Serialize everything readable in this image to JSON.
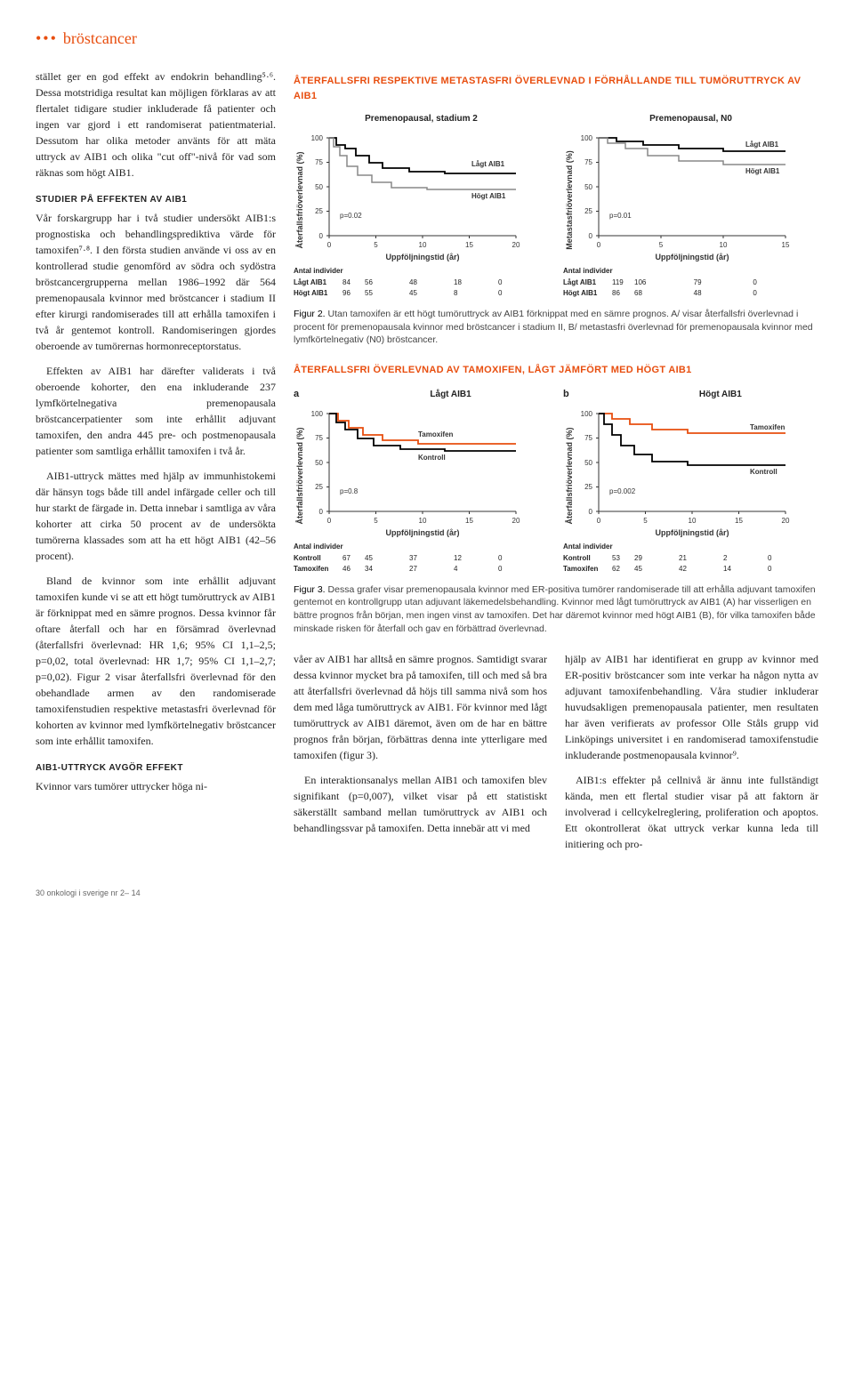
{
  "section_label": "bröstcancer",
  "left": {
    "p1": "stället ger en god effekt av endokrin behandling⁵·⁶. Dessa motstridiga resultat kan möjligen förklaras av att flertalet tidigare studier inkluderade få patienter och ingen var gjord i ett randomiserat patientmaterial. Dessutom har olika metoder använts för att mäta uttryck av AIB1 och olika \"cut off\"-nivå för vad som räknas som högt AIB1.",
    "h1": "STUDIER PÅ EFFEKTEN AV AIB1",
    "p2": "Vår forskargrupp har i två studier undersökt AIB1:s prognostiska och behandlingsprediktiva värde för tamoxifen⁷·⁸. I den första studien använde vi oss av en kontrollerad studie genomförd av södra och sydöstra bröstcancergrupperna mellan 1986–1992 där 564 premenopausala kvinnor med bröstcancer i stadium II efter kirurgi randomiserades till att erhålla tamoxifen i två år gentemot kontroll. Randomiseringen gjordes oberoende av tumörernas hormonreceptorstatus.",
    "p3": "Effekten av AIB1 har därefter validerats i två oberoende kohorter, den ena inkluderande 237 lymfkörtelnegativa premenopausala bröstcancerpatienter som inte erhållit adjuvant tamoxifen, den andra 445 pre- och postmenopausala patienter som samtliga erhållit tamoxifen i två år.",
    "p4": "AIB1-uttryck mättes med hjälp av immunhistokemi där hänsyn togs både till andel infärgade celler och till hur starkt de färgade in. Detta innebar i samtliga av våra kohorter att cirka 50 procent av de undersökta tumörerna klassades som att ha ett högt AIB1 (42–56 procent).",
    "p5": "Bland de kvinnor som inte erhållit adjuvant tamoxifen kunde vi se att ett högt tumöruttryck av AIB1 är förknippat med en sämre prognos. Dessa kvinnor får oftare återfall och har en försämrad överlevnad (återfallsfri överlevnad: HR 1,6; 95% CI 1,1–2,5; p=0,02, total överlevnad: HR 1,7; 95% CI 1,1–2,7; p=0,02). Figur 2 visar återfallsfri överlevnad för den obehandlade armen av den randomiserade tamoxifenstudien respektive metastasfri överlevnad för kohorten av kvinnor med lymfkörtelnegativ bröstcancer som inte erhållit tamoxifen.",
    "h2": "AIB1-UTTRYCK AVGÖR EFFEKT",
    "p6": "Kvinnor vars tumörer uttrycker höga ni-"
  },
  "fig2": {
    "title": "ÅTERFALLSFRI RESPEKTIVE METASTASFRI ÖVERLEVNAD I FÖRHÅLLANDE TILL TUMÖRUTTRYCK AV AIB1",
    "panelA": {
      "subtitle": "Premenopausal, stadium 2",
      "ylabel": "Återfallsfriöverlevnad (%)",
      "xlabel": "Uppföljningstid (år)",
      "y_ticks": [
        0,
        25,
        50,
        75,
        100
      ],
      "x_ticks": [
        0,
        5,
        10,
        15,
        20
      ],
      "series1_label": "Lågt AIB1",
      "series2_label": "Högt AIB1",
      "series1_color": "#000000",
      "series2_color": "#888888",
      "pval": "p=0.02",
      "table_hdr": "Antal individer",
      "table_rows": [
        {
          "lbl": "Lågt AIB1",
          "v": [
            84,
            56,
            48,
            18,
            0
          ]
        },
        {
          "lbl": "Högt AIB1",
          "v": [
            96,
            55,
            45,
            8,
            0
          ]
        }
      ]
    },
    "panelB": {
      "subtitle": "Premenopausal, N0",
      "ylabel": "Metastasfriöverlevnad (%)",
      "xlabel": "Uppföljningstid (år)",
      "y_ticks": [
        0,
        25,
        50,
        75,
        100
      ],
      "x_ticks": [
        0,
        5,
        10,
        15
      ],
      "series1_label": "Lågt AIB1",
      "series2_label": "Högt AIB1",
      "pval": "p=0.01",
      "table_hdr": "Antal individer",
      "table_rows": [
        {
          "lbl": "Lågt AIB1",
          "v": [
            119,
            106,
            79,
            0
          ]
        },
        {
          "lbl": "Högt AIB1",
          "v": [
            86,
            68,
            48,
            0
          ]
        }
      ]
    },
    "caption_label": "Figur 2.",
    "caption": " Utan tamoxifen är ett högt tumöruttryck av AIB1 förknippat med en sämre prognos. A/ visar återfallsfri överlevnad i procent för premenopausala kvinnor med bröstcancer i stadium II, B/ metastasfri överlevnad för premenopausala kvinnor med lymfkörtelnegativ (N0) bröstcancer."
  },
  "fig3": {
    "title": "ÅTERFALLSFRI ÖVERLEVNAD AV TAMOXIFEN, LÅGT JÄMFÖRT MED HÖGT AIB1",
    "panelA": {
      "tag": "a",
      "subtitle": "Lågt AIB1",
      "ylabel": "Återfallsfriöverlevnad (%)",
      "xlabel": "Uppföljningstid (år)",
      "y_ticks": [
        0,
        25,
        50,
        75,
        100
      ],
      "x_ticks": [
        0,
        5,
        10,
        15,
        20
      ],
      "series1_label": "Tamoxifen",
      "series2_label": "Kontroll",
      "series1_color": "#e84e0f",
      "series2_color": "#000000",
      "pval": "p=0.8",
      "table_hdr": "Antal individer",
      "table_rows": [
        {
          "lbl": "Kontroll",
          "v": [
            67,
            45,
            37,
            12,
            0
          ]
        },
        {
          "lbl": "Tamoxifen",
          "v": [
            46,
            34,
            27,
            4,
            0
          ]
        }
      ]
    },
    "panelB": {
      "tag": "b",
      "subtitle": "Högt AIB1",
      "ylabel": "Återfallsfriöverlevnad (%)",
      "xlabel": "Uppföljningstid (år)",
      "y_ticks": [
        0,
        25,
        50,
        75,
        100
      ],
      "x_ticks": [
        0,
        5,
        10,
        15,
        20
      ],
      "series1_label": "Tamoxifen",
      "series2_label": "Kontroll",
      "pval": "p=0.002",
      "table_hdr": "Antal individer",
      "table_rows": [
        {
          "lbl": "Kontroll",
          "v": [
            53,
            29,
            21,
            2,
            0
          ]
        },
        {
          "lbl": "Tamoxifen",
          "v": [
            62,
            45,
            42,
            14,
            0
          ]
        }
      ]
    },
    "caption_label": "Figur 3.",
    "caption": " Dessa grafer visar premenopausala kvinnor med ER-positiva tumörer randomiserade till att erhålla adjuvant tamoxifen gentemot en kontrollgrupp utan adjuvant läkemedelsbehandling. Kvinnor med lågt tumöruttryck av AIB1 (A) har visserligen en bättre prognos från början, men ingen vinst av tamoxifen. Det har däremot kvinnor med högt AIB1 (B), för vilka tamoxifen både minskade risken för återfall och gav en förbättrad överlevnad."
  },
  "bottom": {
    "c1": "våer av AIB1 har alltså en sämre prognos. Samtidigt svarar dessa kvinnor mycket bra på tamoxifen, till och med så bra att återfallsfri överlevnad då höjs till samma nivå som hos dem med låga tumöruttryck av AIB1. För kvinnor med lågt tumöruttryck av AIB1 däremot, även om de har en bättre prognos från början, förbättras denna inte ytterligare med tamoxifen (figur 3).",
    "c1b": "En interaktionsanalys mellan AIB1 och tamoxifen blev signifikant (p=0,007), vilket visar på ett statistiskt säkerställt samband mellan tumöruttryck av AIB1 och behandlingssvar på tamoxifen. Detta innebär att vi med",
    "c2": "hjälp av AIB1 har identifierat en grupp av kvinnor med ER-positiv bröstcancer som inte verkar ha någon nytta av adjuvant tamoxifenbehandling. Våra studier inkluderar huvudsakligen premenopausala patienter, men resultaten har även verifierats av professor Olle Ståls grupp vid Linköpings universitet i en randomiserad tamoxifenstudie inkluderande postmenopausala kvinnor⁹.",
    "c2b": "AIB1:s effekter på cellnivå är ännu inte fullständigt kända, men ett flertal studier visar på att faktorn är involverad i cellcykelreglering, proliferation och apoptos. Ett okontrollerat ökat uttryck verkar kunna leda till initiering och pro-"
  },
  "footer": "30   onkologi i sverige nr 2– 14"
}
